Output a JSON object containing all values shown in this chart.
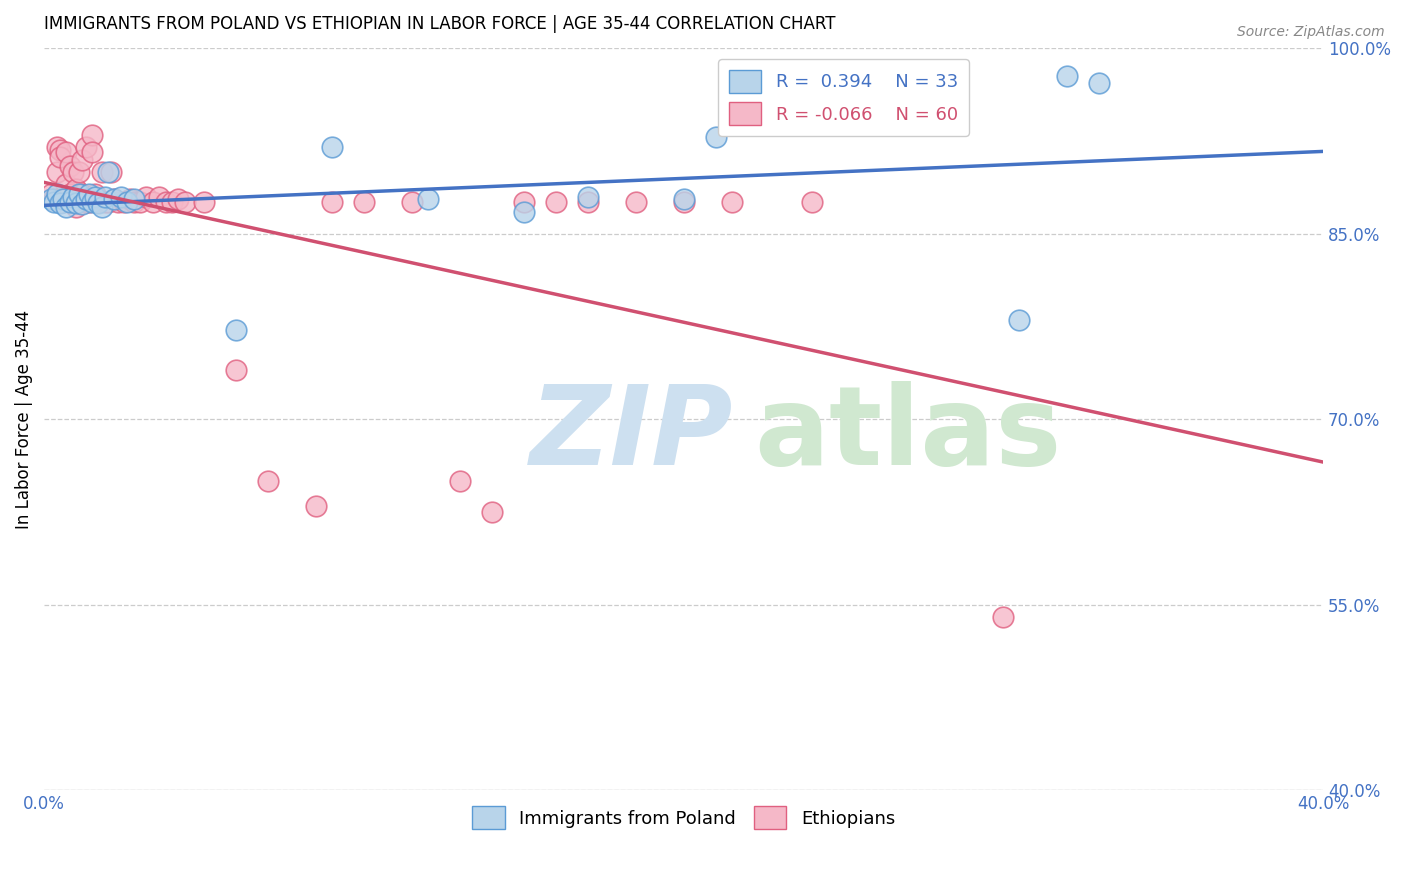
{
  "title": "IMMIGRANTS FROM POLAND VS ETHIOPIAN IN LABOR FORCE | AGE 35-44 CORRELATION CHART",
  "source": "Source: ZipAtlas.com",
  "ylabel": "In Labor Force | Age 35-44",
  "xlim": [
    0.0,
    0.4
  ],
  "ylim": [
    0.4,
    1.0
  ],
  "xticks": [
    0.0,
    0.05,
    0.1,
    0.15,
    0.2,
    0.25,
    0.3,
    0.35,
    0.4
  ],
  "xtick_labels": [
    "0.0%",
    "",
    "",
    "",
    "",
    "",
    "",
    "",
    "40.0%"
  ],
  "ytick_labels_right": [
    "40.0%",
    "55.0%",
    "70.0%",
    "85.0%",
    "100.0%"
  ],
  "yticks_right": [
    0.4,
    0.55,
    0.7,
    0.85,
    1.0
  ],
  "poland_color": "#b8d4ea",
  "ethiopia_color": "#f5b8c8",
  "poland_edge_color": "#5b9bd5",
  "ethiopia_edge_color": "#e06080",
  "poland_line_color": "#4472c4",
  "ethiopia_line_color": "#d05070",
  "poland_x": [
    0.002,
    0.003,
    0.004,
    0.005,
    0.006,
    0.007,
    0.008,
    0.009,
    0.01,
    0.011,
    0.012,
    0.013,
    0.014,
    0.015,
    0.016,
    0.017,
    0.018,
    0.019,
    0.02,
    0.022,
    0.024,
    0.026,
    0.028,
    0.06,
    0.09,
    0.12,
    0.15,
    0.17,
    0.2,
    0.21,
    0.305,
    0.32,
    0.33
  ],
  "poland_y": [
    0.878,
    0.876,
    0.882,
    0.875,
    0.878,
    0.872,
    0.876,
    0.88,
    0.875,
    0.882,
    0.874,
    0.878,
    0.882,
    0.876,
    0.88,
    0.875,
    0.872,
    0.88,
    0.9,
    0.878,
    0.88,
    0.876,
    0.878,
    0.772,
    0.92,
    0.878,
    0.868,
    0.88,
    0.878,
    0.928,
    0.78,
    0.978,
    0.972
  ],
  "ethiopia_x": [
    0.002,
    0.003,
    0.004,
    0.004,
    0.005,
    0.005,
    0.006,
    0.007,
    0.007,
    0.008,
    0.008,
    0.009,
    0.009,
    0.01,
    0.01,
    0.011,
    0.011,
    0.012,
    0.012,
    0.013,
    0.013,
    0.014,
    0.015,
    0.015,
    0.016,
    0.017,
    0.018,
    0.019,
    0.02,
    0.021,
    0.022,
    0.023,
    0.025,
    0.027,
    0.028,
    0.03,
    0.032,
    0.034,
    0.036,
    0.038,
    0.04,
    0.042,
    0.044,
    0.05,
    0.06,
    0.07,
    0.085,
    0.09,
    0.1,
    0.115,
    0.13,
    0.14,
    0.15,
    0.16,
    0.17,
    0.185,
    0.2,
    0.215,
    0.24,
    0.3
  ],
  "ethiopia_y": [
    0.882,
    0.878,
    0.9,
    0.92,
    0.918,
    0.912,
    0.876,
    0.89,
    0.916,
    0.882,
    0.905,
    0.9,
    0.878,
    0.886,
    0.872,
    0.9,
    0.876,
    0.91,
    0.882,
    0.92,
    0.876,
    0.876,
    0.93,
    0.916,
    0.882,
    0.876,
    0.9,
    0.876,
    0.876,
    0.9,
    0.878,
    0.876,
    0.876,
    0.878,
    0.876,
    0.876,
    0.88,
    0.876,
    0.88,
    0.876,
    0.876,
    0.878,
    0.876,
    0.876,
    0.74,
    0.65,
    0.63,
    0.876,
    0.876,
    0.876,
    0.65,
    0.625,
    0.876,
    0.876,
    0.876,
    0.876,
    0.876,
    0.876,
    0.876,
    0.54
  ],
  "legend_poland_r": "R =  0.394",
  "legend_poland_n": "N = 33",
  "legend_ethiopia_r": "R = -0.066",
  "legend_ethiopia_n": "N = 60",
  "legend_text_blue": "#4472c4",
  "legend_text_pink": "#d05070",
  "watermark_zip_color": "#cde0f0",
  "watermark_atlas_color": "#d0e8d0",
  "title_fontsize": 12,
  "tick_fontsize": 12,
  "legend_fontsize": 13
}
